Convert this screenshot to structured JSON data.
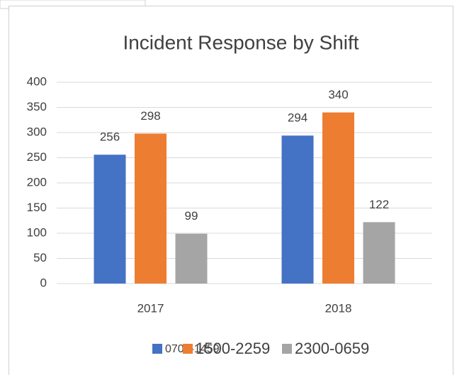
{
  "chart_data": {
    "type": "bar",
    "title": "Incident Response by Shift",
    "categories": [
      "2017",
      "2018"
    ],
    "series": [
      {
        "name": "0700-1459",
        "color": "#4472c4",
        "values": [
          256,
          294
        ]
      },
      {
        "name": "1500-2259",
        "color": "#ed7d31",
        "values": [
          298,
          340
        ]
      },
      {
        "name": "2300-0659",
        "color": "#a5a5a5",
        "values": [
          99,
          122
        ]
      }
    ],
    "ylim": [
      0,
      400
    ],
    "yticks": [
      0,
      50,
      100,
      150,
      200,
      250,
      300,
      350,
      400
    ],
    "grid": true,
    "legend": "bottom"
  }
}
